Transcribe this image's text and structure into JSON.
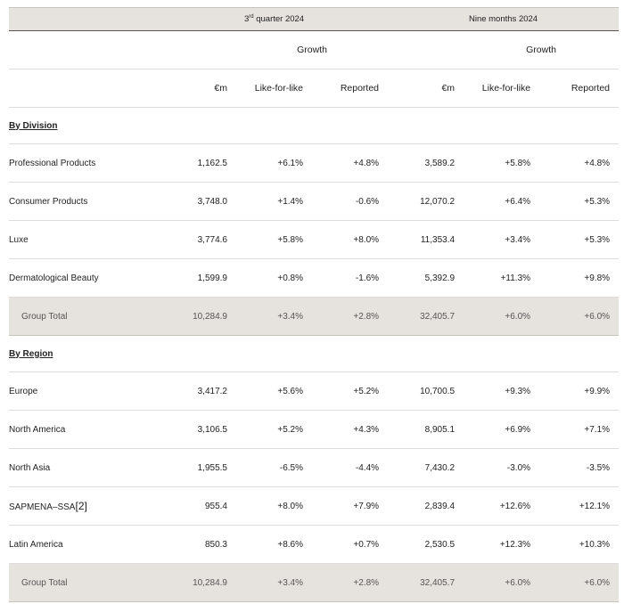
{
  "header": {
    "q3_prefix": "3",
    "q3_sup": "rd",
    "q3_suffix": " quarter 2024",
    "nine_months": "Nine months 2024",
    "growth": "Growth",
    "col_em": "€m",
    "col_lfl": "Like-for-like",
    "col_reported": "Reported"
  },
  "division": {
    "title": "By Division",
    "rows": [
      {
        "label": "Professional Products",
        "q3_em": "1,162.5",
        "q3_lfl": "+6.1%",
        "q3_rep": "+4.8%",
        "n9_em": "3,589.2",
        "n9_lfl": "+5.8%",
        "n9_rep": "+4.8%"
      },
      {
        "label": "Consumer Products",
        "q3_em": "3,748.0",
        "q3_lfl": "+1.4%",
        "q3_rep": "-0.6%",
        "n9_em": "12,070.2",
        "n9_lfl": "+6.4%",
        "n9_rep": "+5.3%"
      },
      {
        "label": "Luxe",
        "q3_em": "3,774.6",
        "q3_lfl": "+5.8%",
        "q3_rep": "+8.0%",
        "n9_em": "11,353.4",
        "n9_lfl": "+3.4%",
        "n9_rep": "+5.3%"
      },
      {
        "label": "Dermatological Beauty",
        "q3_em": "1,599.9",
        "q3_lfl": "+0.8%",
        "q3_rep": "-1.6%",
        "n9_em": "5,392.9",
        "n9_lfl": "+11.3%",
        "n9_rep": "+9.8%"
      }
    ],
    "total": {
      "label": "Group Total",
      "q3_em": "10,284.9",
      "q3_lfl": "+3.4%",
      "q3_rep": "+2.8%",
      "n9_em": "32,405.7",
      "n9_lfl": "+6.0%",
      "n9_rep": "+6.0%"
    }
  },
  "region": {
    "title": "By Region",
    "rows": [
      {
        "label": "Europe",
        "q3_em": "3,417.2",
        "q3_lfl": "+5.6%",
        "q3_rep": "+5.2%",
        "n9_em": "10,700.5",
        "n9_lfl": "+9.3%",
        "n9_rep": "+9.9%"
      },
      {
        "label": "North America",
        "q3_em": "3,106.5",
        "q3_lfl": "+5.2%",
        "q3_rep": "+4.3%",
        "n9_em": "8,905.1",
        "n9_lfl": "+6.9%",
        "n9_rep": "+7.1%"
      },
      {
        "label": "North Asia",
        "q3_em": "1,955.5",
        "q3_lfl": "-6.5%",
        "q3_rep": "-4.4%",
        "n9_em": "7,430.2",
        "n9_lfl": "-3.0%",
        "n9_rep": "-3.5%"
      },
      {
        "label": "SAPMENA–SSA",
        "footnote": "[2]",
        "q3_em": "955.4",
        "q3_lfl": "+8.0%",
        "q3_rep": "+7.9%",
        "n9_em": "2,839.4",
        "n9_lfl": "+12.6%",
        "n9_rep": "+12.1%"
      },
      {
        "label": "Latin America",
        "q3_em": "850.3",
        "q3_lfl": "+8.6%",
        "q3_rep": "+0.7%",
        "n9_em": "2,530.5",
        "n9_lfl": "+12.3%",
        "n9_rep": "+10.3%"
      }
    ],
    "total": {
      "label": "Group Total",
      "q3_em": "10,284.9",
      "q3_lfl": "+3.4%",
      "q3_rep": "+2.8%",
      "n9_em": "32,405.7",
      "n9_lfl": "+6.0%",
      "n9_rep": "+6.0%"
    }
  }
}
